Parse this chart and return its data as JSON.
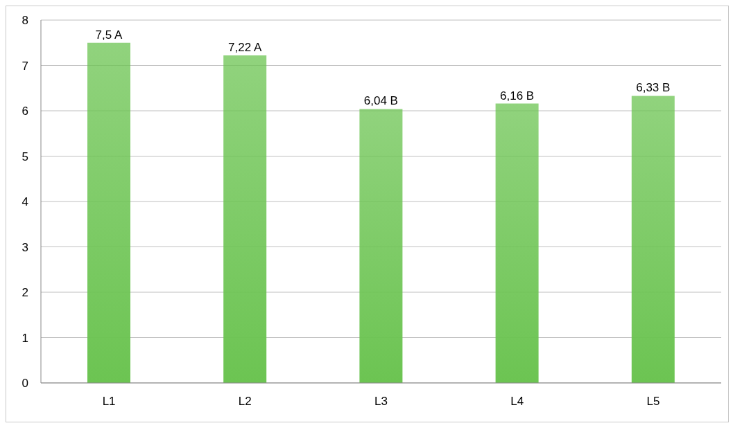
{
  "chart_data": {
    "type": "bar",
    "categories": [
      "L1",
      "L2",
      "L3",
      "L4",
      "L5"
    ],
    "values": [
      7.5,
      7.22,
      6.04,
      6.16,
      6.33
    ],
    "value_labels": [
      "7,5 A",
      "7,22 A",
      "6,04 B",
      "6,16 B",
      "6,33 B"
    ],
    "color": "#6cc452",
    "ylim": [
      0,
      8
    ],
    "yticks": [
      0,
      1,
      2,
      3,
      4,
      5,
      6,
      7,
      8
    ],
    "grid": "y"
  }
}
